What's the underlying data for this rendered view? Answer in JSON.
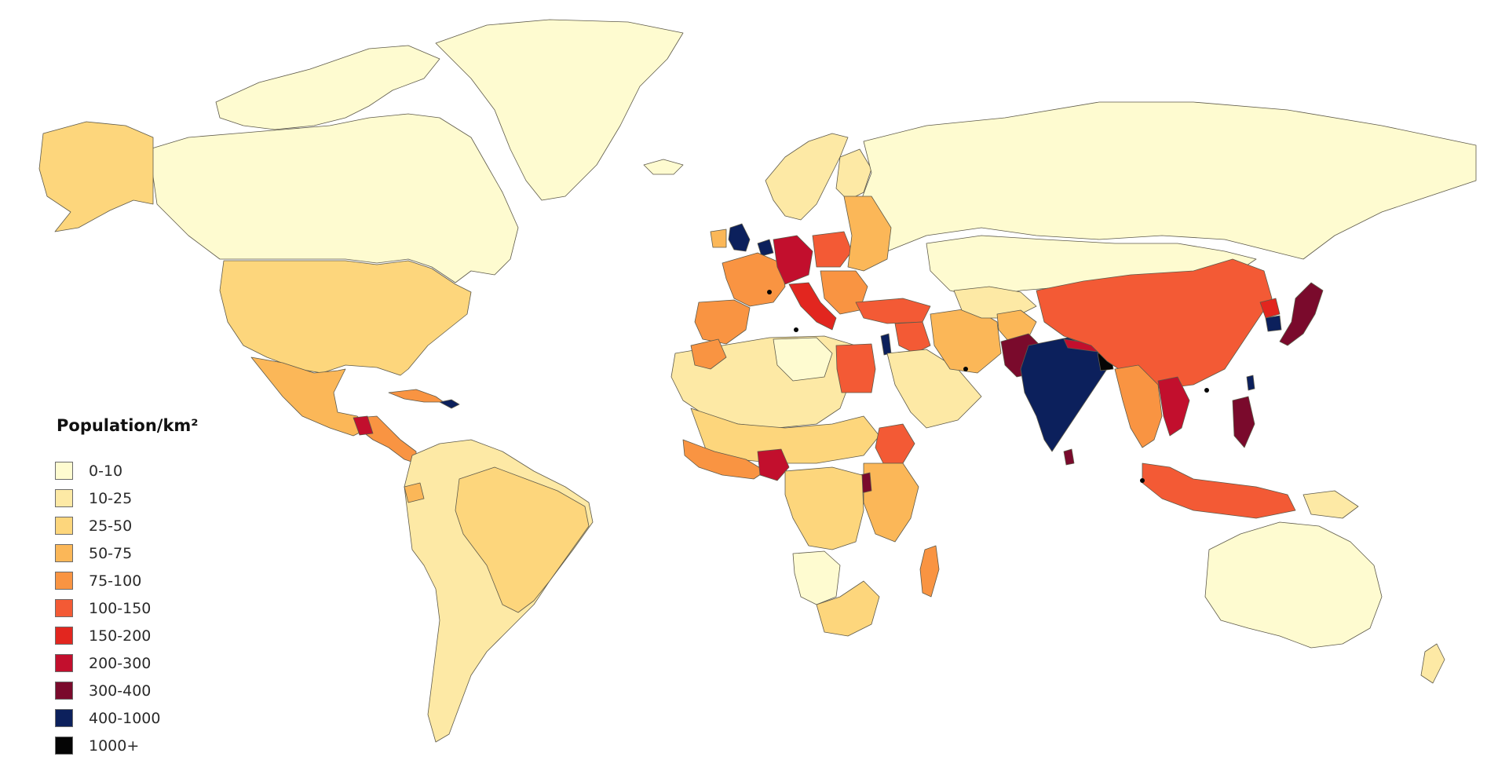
{
  "legend": {
    "title": "Population/km²",
    "classes": [
      {
        "label": "0-10",
        "color": "#fefbd0"
      },
      {
        "label": "10-25",
        "color": "#fde9a5"
      },
      {
        "label": "25-50",
        "color": "#fdd67c"
      },
      {
        "label": "50-75",
        "color": "#fbb758"
      },
      {
        "label": "75-100",
        "color": "#f99442"
      },
      {
        "label": "100-150",
        "color": "#f35a35"
      },
      {
        "label": "150-200",
        "color": "#e2261f"
      },
      {
        "label": "200-300",
        "color": "#c20f2d"
      },
      {
        "label": "300-400",
        "color": "#7a0a2c"
      },
      {
        "label": "400-1000",
        "color": "#0c205c"
      },
      {
        "label": "1000+",
        "color": "#050505"
      }
    ]
  },
  "regions": [
    {
      "name": "canada",
      "class": 0
    },
    {
      "name": "greenland",
      "class": 0
    },
    {
      "name": "canadian-arctic-islands",
      "class": 0
    },
    {
      "name": "alaska",
      "class": 2
    },
    {
      "name": "united-states",
      "class": 2
    },
    {
      "name": "mexico",
      "class": 3
    },
    {
      "name": "central-america",
      "class": 4
    },
    {
      "name": "guatemala-el-salvador",
      "class": 7
    },
    {
      "name": "cuba",
      "class": 4
    },
    {
      "name": "hispaniola",
      "class": 9
    },
    {
      "name": "south-america",
      "class": 1
    },
    {
      "name": "brazil",
      "class": 2
    },
    {
      "name": "ecuador",
      "class": 3
    },
    {
      "name": "iceland",
      "class": 0
    },
    {
      "name": "scandinavia",
      "class": 1
    },
    {
      "name": "finland",
      "class": 1
    },
    {
      "name": "russia",
      "class": 0
    },
    {
      "name": "kazakhstan-mongolia",
      "class": 0
    },
    {
      "name": "united-kingdom",
      "class": 9
    },
    {
      "name": "ireland",
      "class": 3
    },
    {
      "name": "france",
      "class": 4
    },
    {
      "name": "iberia",
      "class": 4
    },
    {
      "name": "benelux",
      "class": 9
    },
    {
      "name": "germany",
      "class": 7
    },
    {
      "name": "poland",
      "class": 5
    },
    {
      "name": "italy",
      "class": 6
    },
    {
      "name": "eastern-europe",
      "class": 3
    },
    {
      "name": "balkans",
      "class": 4
    },
    {
      "name": "turkey",
      "class": 5
    },
    {
      "name": "levant",
      "class": 5
    },
    {
      "name": "israel",
      "class": 9
    },
    {
      "name": "iran",
      "class": 3
    },
    {
      "name": "arabia",
      "class": 1
    },
    {
      "name": "central-asia",
      "class": 1
    },
    {
      "name": "afghanistan",
      "class": 3
    },
    {
      "name": "pakistan",
      "class": 8
    },
    {
      "name": "india",
      "class": 9
    },
    {
      "name": "nepal",
      "class": 7
    },
    {
      "name": "bangladesh",
      "class": 10
    },
    {
      "name": "sri-lanka",
      "class": 8
    },
    {
      "name": "china",
      "class": 5
    },
    {
      "name": "korea-north",
      "class": 6
    },
    {
      "name": "korea-south",
      "class": 9
    },
    {
      "name": "japan",
      "class": 8
    },
    {
      "name": "taiwan",
      "class": 9
    },
    {
      "name": "myanmar-thailand",
      "class": 4
    },
    {
      "name": "vietnam",
      "class": 7
    },
    {
      "name": "philippines",
      "class": 8
    },
    {
      "name": "indonesia-malaysia",
      "class": 5
    },
    {
      "name": "papua-new-guinea",
      "class": 1
    },
    {
      "name": "australia",
      "class": 0
    },
    {
      "name": "new-zealand",
      "class": 1
    },
    {
      "name": "north-africa",
      "class": 1
    },
    {
      "name": "morocco",
      "class": 4
    },
    {
      "name": "algeria-libya",
      "class": 0
    },
    {
      "name": "egypt",
      "class": 5
    },
    {
      "name": "sahel",
      "class": 2
    },
    {
      "name": "west-africa-coast",
      "class": 4
    },
    {
      "name": "nigeria",
      "class": 7
    },
    {
      "name": "ethiopia",
      "class": 5
    },
    {
      "name": "east-africa",
      "class": 3
    },
    {
      "name": "great-lakes",
      "class": 8
    },
    {
      "name": "central-africa",
      "class": 2
    },
    {
      "name": "namibia-botswana",
      "class": 0
    },
    {
      "name": "southern-africa",
      "class": 2
    },
    {
      "name": "madagascar",
      "class": 4
    }
  ]
}
